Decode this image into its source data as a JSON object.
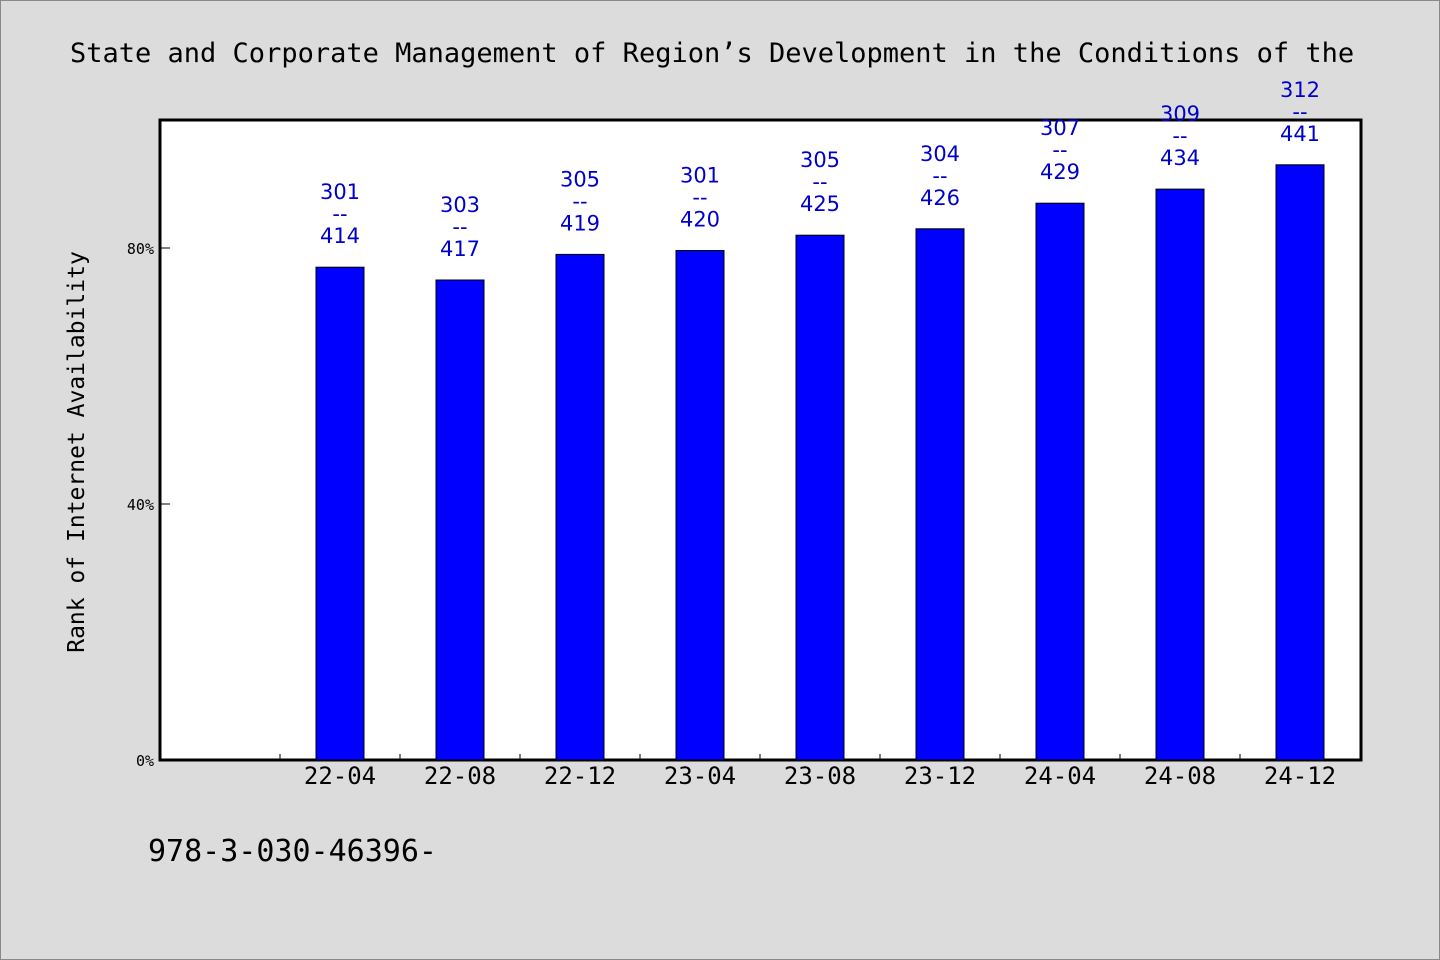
{
  "header": {
    "title": "State and Corporate Management of Region’s Development in the Conditions of the"
  },
  "footer": {
    "text": "978-3-030-46396-"
  },
  "chart_data": {
    "type": "bar",
    "ylabel": "Rank of Internet Availability",
    "xlabel": "",
    "ylim": [
      0,
      100
    ],
    "yticks": [
      {
        "value": 0,
        "label": "0%"
      },
      {
        "value": 40,
        "label": "40%"
      },
      {
        "value": 80,
        "label": "80%"
      }
    ],
    "categories": [
      "22-04",
      "22-08",
      "22-12",
      "23-04",
      "23-08",
      "23-12",
      "24-04",
      "24-08",
      "24-12"
    ],
    "values": [
      77,
      75,
      79,
      79.6,
      82,
      83,
      87,
      89.2,
      93
    ],
    "data_labels": [
      {
        "top": "301",
        "mid": "--",
        "bottom": "414"
      },
      {
        "top": "303",
        "mid": "--",
        "bottom": "417"
      },
      {
        "top": "305",
        "mid": "--",
        "bottom": "419"
      },
      {
        "top": "301",
        "mid": "--",
        "bottom": "420"
      },
      {
        "top": "305",
        "mid": "--",
        "bottom": "425"
      },
      {
        "top": "304",
        "mid": "--",
        "bottom": "426"
      },
      {
        "top": "307",
        "mid": "--",
        "bottom": "429"
      },
      {
        "top": "309",
        "mid": "--",
        "bottom": "434"
      },
      {
        "top": "312",
        "mid": "--",
        "bottom": "441"
      }
    ],
    "bar_color": "#0000ff",
    "label_color": "#0000cc",
    "plot_background": "#ffffff",
    "page_background": "#dcdcdc",
    "grid": false,
    "legend": "none"
  }
}
